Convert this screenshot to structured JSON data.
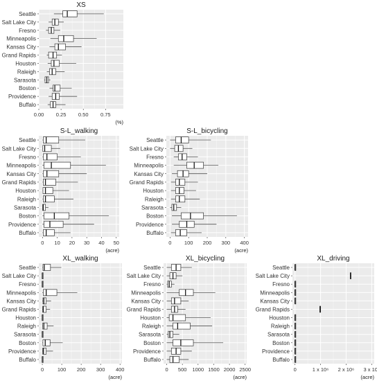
{
  "chart_data": [
    {
      "type": "boxplot",
      "title": "XS",
      "xlabel": "(%)",
      "categories": [
        "Seattle",
        "Salt Lake City",
        "Fresno",
        "Minneapolis",
        "Kansas City",
        "Grand Rapids",
        "Houston",
        "Raleigh",
        "Sarasota",
        "Boston",
        "Providence",
        "Buffalo"
      ],
      "xlim": [
        0,
        0.95
      ],
      "xticks": [
        0.0,
        0.25,
        0.5,
        0.75
      ],
      "xtick_labels": [
        "0.00",
        "0.25",
        "0.50",
        "0.75"
      ],
      "grid": true,
      "boxes": [
        {
          "min": 0.17,
          "q1": 0.27,
          "median": 0.32,
          "q3": 0.43,
          "max": 0.73
        },
        {
          "min": 0.11,
          "q1": 0.15,
          "median": 0.18,
          "q3": 0.22,
          "max": 0.28
        },
        {
          "min": 0.08,
          "q1": 0.11,
          "median": 0.14,
          "q3": 0.17,
          "max": 0.24
        },
        {
          "min": 0.13,
          "q1": 0.22,
          "median": 0.28,
          "q3": 0.39,
          "max": 0.65
        },
        {
          "min": 0.12,
          "q1": 0.18,
          "median": 0.22,
          "q3": 0.3,
          "max": 0.48
        },
        {
          "min": 0.09,
          "q1": 0.11,
          "median": 0.16,
          "q3": 0.2,
          "max": 0.26
        },
        {
          "min": 0.1,
          "q1": 0.14,
          "median": 0.17,
          "q3": 0.23,
          "max": 0.42
        },
        {
          "min": 0.09,
          "q1": 0.12,
          "median": 0.15,
          "q3": 0.19,
          "max": 0.29
        },
        {
          "min": 0.06,
          "q1": 0.07,
          "median": 0.09,
          "q3": 0.11,
          "max": 0.13
        },
        {
          "min": 0.12,
          "q1": 0.16,
          "median": 0.18,
          "q3": 0.24,
          "max": 0.37
        },
        {
          "min": 0.11,
          "q1": 0.15,
          "median": 0.19,
          "q3": 0.23,
          "max": 0.43
        },
        {
          "min": 0.1,
          "q1": 0.13,
          "median": 0.16,
          "q3": 0.19,
          "max": 0.3
        }
      ]
    },
    {
      "type": "boxplot",
      "title": "S-L_walking",
      "xlabel": "(acre)",
      "categories": [
        "Seattle",
        "Salt Lake City",
        "Fresno",
        "Minneapolis",
        "Kansas City",
        "Grand Rapids",
        "Houston",
        "Raleigh",
        "Sarasota",
        "Boston",
        "Providence",
        "Buffalo"
      ],
      "xlim": [
        -2.5,
        52
      ],
      "xticks": [
        0,
        10,
        20,
        30,
        40,
        50
      ],
      "xtick_labels": [
        "0",
        "10",
        "20",
        "30",
        "40",
        "50"
      ],
      "grid": true,
      "boxes": [
        {
          "min": 0,
          "q1": 0.5,
          "median": 2.5,
          "q3": 11,
          "max": 29
        },
        {
          "min": 0,
          "q1": 0.2,
          "median": 1.5,
          "q3": 6,
          "max": 12
        },
        {
          "min": 0,
          "q1": 0.5,
          "median": 3,
          "q3": 10,
          "max": 26
        },
        {
          "min": 0,
          "q1": 1,
          "median": 6,
          "q3": 19,
          "max": 43
        },
        {
          "min": 0,
          "q1": 0.5,
          "median": 3,
          "q3": 11,
          "max": 30
        },
        {
          "min": 0,
          "q1": 0.5,
          "median": 2,
          "q3": 9,
          "max": 24
        },
        {
          "min": 0,
          "q1": 0.3,
          "median": 2,
          "q3": 7,
          "max": 18
        },
        {
          "min": 0,
          "q1": 0.5,
          "median": 2,
          "q3": 8,
          "max": 21
        },
        {
          "min": 0,
          "q1": 0.1,
          "median": 0.5,
          "q3": 2,
          "max": 4
        },
        {
          "min": 0,
          "q1": 1,
          "median": 8,
          "q3": 18,
          "max": 45
        },
        {
          "min": 0,
          "q1": 1,
          "median": 5,
          "q3": 14,
          "max": 35
        },
        {
          "min": 0,
          "q1": 0.5,
          "median": 2.5,
          "q3": 8,
          "max": 19
        }
      ]
    },
    {
      "type": "boxplot",
      "title": "S-L_bicycling",
      "xlabel": "(acre)",
      "categories": [
        "Seattle",
        "Salt Lake City",
        "Fresno",
        "Minneapolis",
        "Kansas City",
        "Grand Rapids",
        "Houston",
        "Raleigh",
        "Sarasota",
        "Boston",
        "Providence",
        "Buffalo"
      ],
      "xlim": [
        -20,
        420
      ],
      "xticks": [
        0,
        100,
        200,
        300,
        400
      ],
      "xtick_labels": [
        "0",
        "100",
        "200",
        "300",
        "400"
      ],
      "grid": true,
      "boxes": [
        {
          "min": 0,
          "q1": 30,
          "median": 60,
          "q3": 100,
          "max": 220
        },
        {
          "min": 0,
          "q1": 25,
          "median": 45,
          "q3": 70,
          "max": 120
        },
        {
          "min": 20,
          "q1": 45,
          "median": 65,
          "q3": 90,
          "max": 150
        },
        {
          "min": 20,
          "q1": 90,
          "median": 130,
          "q3": 180,
          "max": 260
        },
        {
          "min": 10,
          "q1": 40,
          "median": 70,
          "q3": 100,
          "max": 200
        },
        {
          "min": 5,
          "q1": 30,
          "median": 50,
          "q3": 80,
          "max": 150
        },
        {
          "min": 5,
          "q1": 30,
          "median": 50,
          "q3": 75,
          "max": 140
        },
        {
          "min": 5,
          "q1": 30,
          "median": 50,
          "q3": 80,
          "max": 160
        },
        {
          "min": 0,
          "q1": 10,
          "median": 20,
          "q3": 35,
          "max": 60
        },
        {
          "min": 10,
          "q1": 60,
          "median": 110,
          "q3": 180,
          "max": 360
        },
        {
          "min": 10,
          "q1": 50,
          "median": 90,
          "q3": 130,
          "max": 250
        },
        {
          "min": 5,
          "q1": 30,
          "median": 55,
          "q3": 90,
          "max": 170
        }
      ]
    },
    {
      "type": "boxplot",
      "title": "XL_walking",
      "xlabel": "(acre)",
      "categories": [
        "Seattle",
        "Salt Lake City",
        "Fresno",
        "Minneapolis",
        "Kansas City",
        "Grand Rapids",
        "Houston",
        "Raleigh",
        "Sarasota",
        "Boston",
        "Providence",
        "Buffalo"
      ],
      "xlim": [
        -18,
        410
      ],
      "xticks": [
        0,
        100,
        200,
        300,
        400
      ],
      "xtick_labels": [
        "0",
        "100",
        "200",
        "300",
        "400"
      ],
      "grid": true,
      "boxes": [
        {
          "min": 0,
          "q1": 3,
          "median": 10,
          "q3": 42,
          "max": 98
        },
        {
          "min": 0,
          "q1": 0,
          "median": 0,
          "q3": 2,
          "max": 4
        },
        {
          "min": 0,
          "q1": 0,
          "median": 0,
          "q3": 1,
          "max": 2
        },
        {
          "min": 0,
          "q1": 5,
          "median": 20,
          "q3": 75,
          "max": 180
        },
        {
          "min": 0,
          "q1": 3,
          "median": 8,
          "q3": 20,
          "max": 45
        },
        {
          "min": 0,
          "q1": 2,
          "median": 5,
          "q3": 20,
          "max": 40
        },
        {
          "min": 0,
          "q1": 0,
          "median": 0,
          "q3": 2,
          "max": 4
        },
        {
          "min": 0,
          "q1": 2,
          "median": 8,
          "q3": 25,
          "max": 58
        },
        {
          "min": 0,
          "q1": 0,
          "median": 0,
          "q3": 1,
          "max": 2
        },
        {
          "min": 0,
          "q1": 3,
          "median": 15,
          "q3": 40,
          "max": 105
        },
        {
          "min": 0,
          "q1": 2,
          "median": 6,
          "q3": 20,
          "max": 55
        },
        {
          "min": 0,
          "q1": 0,
          "median": 0,
          "q3": 2,
          "max": 4
        }
      ]
    },
    {
      "type": "boxplot",
      "title": "XL_bicycling",
      "xlabel": "(acre)",
      "categories": [
        "Seattle",
        "Salt Lake City",
        "Fresno",
        "Minneapolis",
        "Kansas City",
        "Grand Rapids",
        "Houston",
        "Raleigh",
        "Sarasota",
        "Boston",
        "Providence",
        "Buffalo"
      ],
      "xlim": [
        -100,
        2550
      ],
      "xticks": [
        0,
        500,
        1000,
        1500,
        2000,
        2500
      ],
      "xtick_labels": [
        "0",
        "500",
        "1000",
        "1500",
        "2000",
        "2500"
      ],
      "grid": true,
      "boxes": [
        {
          "min": 0,
          "q1": 150,
          "median": 300,
          "q3": 450,
          "max": 800
        },
        {
          "min": 0,
          "q1": 100,
          "median": 200,
          "q3": 300,
          "max": 500
        },
        {
          "min": 0,
          "q1": 30,
          "median": 80,
          "q3": 150,
          "max": 250
        },
        {
          "min": 0,
          "q1": 400,
          "median": 600,
          "q3": 850,
          "max": 1550
        },
        {
          "min": 0,
          "q1": 150,
          "median": 250,
          "q3": 450,
          "max": 700
        },
        {
          "min": 0,
          "q1": 150,
          "median": 250,
          "q3": 350,
          "max": 600
        },
        {
          "min": 0,
          "q1": 80,
          "median": 200,
          "q3": 600,
          "max": 1400
        },
        {
          "min": 0,
          "q1": 200,
          "median": 350,
          "q3": 750,
          "max": 1450
        },
        {
          "min": 0,
          "q1": 50,
          "median": 100,
          "q3": 200,
          "max": 400
        },
        {
          "min": 0,
          "q1": 200,
          "median": 450,
          "q3": 850,
          "max": 1800
        },
        {
          "min": 0,
          "q1": 150,
          "median": 300,
          "q3": 450,
          "max": 800
        },
        {
          "min": 0,
          "q1": 100,
          "median": 200,
          "q3": 400,
          "max": 700
        }
      ]
    },
    {
      "type": "boxplot",
      "title": "XL_driving",
      "xlabel": "(acre)",
      "categories": [
        "Seattle",
        "Salt Lake City",
        "Fresno",
        "Minneapolis",
        "Kansas City",
        "Grand Rapids",
        "Houston",
        "Raleigh",
        "Sarasota",
        "Boston",
        "Providence",
        "Buffalo"
      ],
      "xlim": [
        -100000,
        3100000
      ],
      "xticks": [
        0,
        1000000,
        2000000,
        3000000
      ],
      "xtick_labels": [
        "0",
        "1 x 10⁶",
        "2 x 10⁶",
        "3 x 10⁶"
      ],
      "grid": true,
      "boxes": [
        {
          "min": 0,
          "q1": 0,
          "median": 0,
          "q3": 20000,
          "max": 40000
        },
        {
          "min": 2150000,
          "q1": 2160000,
          "median": 2170000,
          "q3": 2190000,
          "max": 2200000
        },
        {
          "min": 0,
          "q1": 0,
          "median": 0,
          "q3": 15000,
          "max": 30000
        },
        {
          "min": 0,
          "q1": 0,
          "median": 0,
          "q3": 20000,
          "max": 45000
        },
        {
          "min": 0,
          "q1": 0,
          "median": 0,
          "q3": 15000,
          "max": 30000
        },
        {
          "min": 960000,
          "q1": 970000,
          "median": 980000,
          "q3": 990000,
          "max": 1000000
        },
        {
          "min": 0,
          "q1": 0,
          "median": 0,
          "q3": 15000,
          "max": 30000
        },
        {
          "min": 0,
          "q1": 0,
          "median": 0,
          "q3": 15000,
          "max": 30000
        },
        {
          "min": 0,
          "q1": 0,
          "median": 0,
          "q3": 10000,
          "max": 20000
        },
        {
          "min": 0,
          "q1": 0,
          "median": 0,
          "q3": 20000,
          "max": 40000
        },
        {
          "min": 0,
          "q1": 0,
          "median": 0,
          "q3": 15000,
          "max": 30000
        },
        {
          "min": 0,
          "q1": 0,
          "median": 0,
          "q3": 15000,
          "max": 30000
        }
      ]
    }
  ]
}
